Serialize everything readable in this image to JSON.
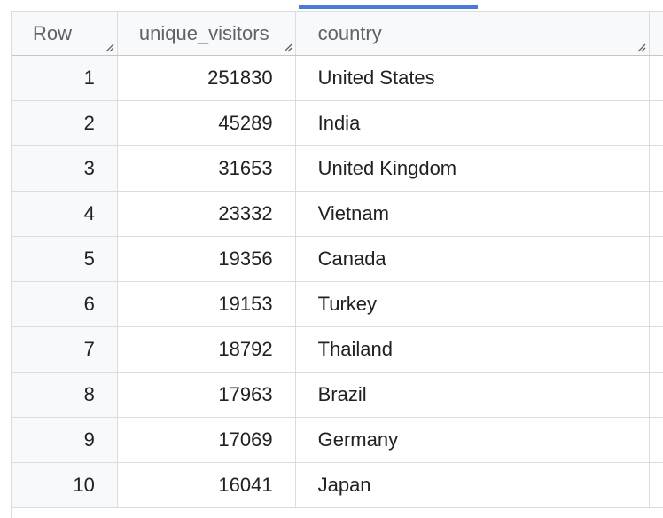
{
  "table": {
    "columns": [
      {
        "key": "row",
        "label": "Row"
      },
      {
        "key": "unique_visitors",
        "label": "unique_visitors"
      },
      {
        "key": "country",
        "label": "country"
      }
    ],
    "rows": [
      {
        "row": "1",
        "unique_visitors": "251830",
        "country": "United States"
      },
      {
        "row": "2",
        "unique_visitors": "45289",
        "country": "India"
      },
      {
        "row": "3",
        "unique_visitors": "31653",
        "country": "United Kingdom"
      },
      {
        "row": "4",
        "unique_visitors": "23332",
        "country": "Vietnam"
      },
      {
        "row": "5",
        "unique_visitors": "19356",
        "country": "Canada"
      },
      {
        "row": "6",
        "unique_visitors": "19153",
        "country": "Turkey"
      },
      {
        "row": "7",
        "unique_visitors": "18792",
        "country": "Thailand"
      },
      {
        "row": "8",
        "unique_visitors": "17963",
        "country": "Brazil"
      },
      {
        "row": "9",
        "unique_visitors": "17069",
        "country": "Germany"
      },
      {
        "row": "10",
        "unique_visitors": "16041",
        "country": "Japan"
      }
    ]
  },
  "icons": {
    "column_resize": "resize-handle-icon"
  },
  "colors": {
    "accent": "#4a7ad6",
    "grid_line": "#dadce0",
    "header_bg": "#f8f9fa",
    "header_text": "#5f6368",
    "cell_text": "#202124"
  }
}
